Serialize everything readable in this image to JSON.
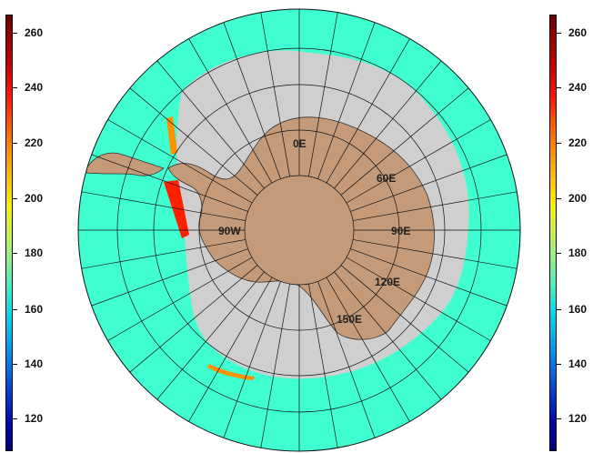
{
  "colorbar": {
    "ticks": [
      "260",
      "240",
      "220",
      "200",
      "180",
      "160",
      "140",
      "120"
    ],
    "colors": [
      "#6e0000",
      "#a40000",
      "#d40000",
      "#ff1800",
      "#ff5a00",
      "#ff9000",
      "#ffc000",
      "#f8f000",
      "#c8f048",
      "#8cf08c",
      "#3cf0c8",
      "#00d8f0",
      "#00a8f0",
      "#0070e8",
      "#0038d0",
      "#0008b0",
      "#000080"
    ]
  },
  "map": {
    "meridian_labels": [
      "0E",
      "60E",
      "90E",
      "120E",
      "150E",
      "90W"
    ],
    "colors": {
      "ocean": "#3fffd0",
      "sea_ice": "#cfcfcf",
      "land": "#c49a78",
      "high": "#ff2000"
    }
  }
}
